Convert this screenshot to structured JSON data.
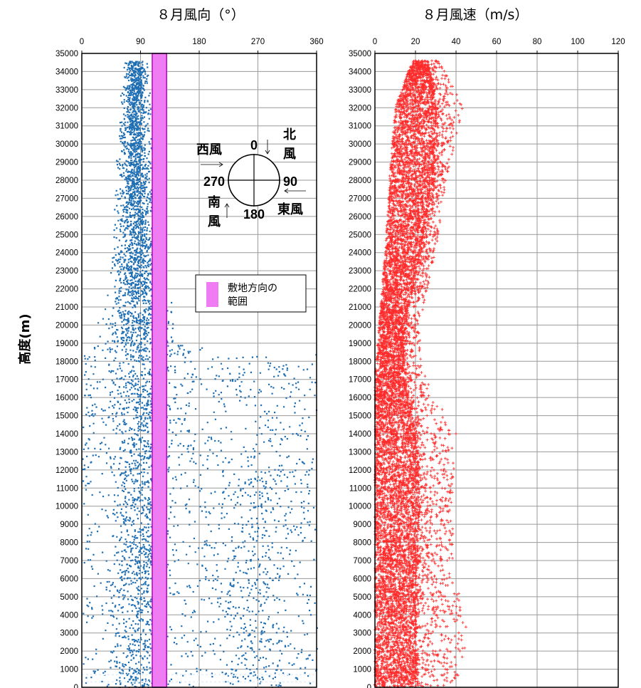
{
  "charts": {
    "left": {
      "title": "８月風向（°）",
      "xticks": [
        "0",
        "90",
        "180",
        "270",
        "360"
      ],
      "xlim": [
        0,
        360
      ],
      "ylim": [
        0,
        35000
      ],
      "ylabel": "高度(m)",
      "highlight_band": {
        "from_deg": 108,
        "to_deg": 130,
        "color": "#f07cf4",
        "edge": "#b800c0"
      },
      "marker_color": "#1f6fb4",
      "legend": {
        "label_line1": "敷地方向の",
        "label_line2": "範囲"
      },
      "compass": {
        "north_value": "0",
        "east_value": "90",
        "south_value": "180",
        "west_value": "270",
        "north_label_1": "北",
        "north_label_2": "風",
        "east_label": "東風",
        "west_label": "西風",
        "south_label_1": "南",
        "south_label_2": "風"
      }
    },
    "right": {
      "title": "８月風速（m/s）",
      "xticks": [
        "0",
        "20",
        "40",
        "60",
        "80",
        "100",
        "120"
      ],
      "xlim": [
        0,
        120
      ],
      "ylim": [
        0,
        35000
      ],
      "marker_color": "#ff2a2a"
    },
    "yticks": [
      "0",
      "1000",
      "2000",
      "3000",
      "4000",
      "5000",
      "6000",
      "7000",
      "8000",
      "9000",
      "10000",
      "11000",
      "12000",
      "13000",
      "14000",
      "15000",
      "16000",
      "17000",
      "18000",
      "19000",
      "20000",
      "21000",
      "22000",
      "23000",
      "24000",
      "25000",
      "26000",
      "27000",
      "28000",
      "29000",
      "30000",
      "31000",
      "32000",
      "33000",
      "34000",
      "35000"
    ]
  },
  "chart_data": [
    {
      "type": "scatter",
      "title": "８月風向（°）",
      "ylabel": "高度(m)",
      "xlim": [
        0,
        360
      ],
      "ylim": [
        0,
        35000
      ],
      "grid": true,
      "series": [
        {
          "name": "",
          "profile_by_altitude": [
            {
              "alt": 0,
              "dir_min": 0,
              "dir_max": 360,
              "dense_center": 90
            },
            {
              "alt": 5000,
              "dir_min": 0,
              "dir_max": 360,
              "dense_center": 260
            },
            {
              "alt": 10000,
              "dir_min": 0,
              "dir_max": 360,
              "dense_center": 90
            },
            {
              "alt": 15000,
              "dir_min": 0,
              "dir_max": 360,
              "dense_center": 90
            },
            {
              "alt": 18000,
              "dir_min": 0,
              "dir_max": 360,
              "dense_center": 90
            },
            {
              "alt": 19000,
              "dir_min": 20,
              "dir_max": 140,
              "dense_center": 88
            },
            {
              "alt": 22000,
              "dir_min": 45,
              "dir_max": 125,
              "dense_center": 85
            },
            {
              "alt": 26000,
              "dir_min": 55,
              "dir_max": 115,
              "dense_center": 82
            },
            {
              "alt": 30000,
              "dir_min": 60,
              "dir_max": 108,
              "dense_center": 80
            },
            {
              "alt": 34000,
              "dir_min": 65,
              "dir_max": 100,
              "dense_center": 82
            }
          ]
        }
      ],
      "highlight_range_deg": [
        108,
        130
      ]
    },
    {
      "type": "scatter",
      "title": "８月風速（m/s）",
      "xlim": [
        0,
        120
      ],
      "ylim": [
        0,
        35000
      ],
      "grid": true,
      "series": [
        {
          "name": "",
          "profile_by_altitude": [
            {
              "alt": 0,
              "speed_min": 0,
              "speed_dense_max": 20,
              "speed_max": 40
            },
            {
              "alt": 3000,
              "speed_min": 0,
              "speed_dense_max": 20,
              "speed_max": 46
            },
            {
              "alt": 6000,
              "speed_min": 0,
              "speed_dense_max": 20,
              "speed_max": 40
            },
            {
              "alt": 10000,
              "speed_min": 0,
              "speed_dense_max": 22,
              "speed_max": 38
            },
            {
              "alt": 14000,
              "speed_min": 0,
              "speed_dense_max": 20,
              "speed_max": 40
            },
            {
              "alt": 17000,
              "speed_min": 0,
              "speed_dense_max": 14,
              "speed_max": 25
            },
            {
              "alt": 20000,
              "speed_min": 2,
              "speed_dense_max": 14,
              "speed_max": 22
            },
            {
              "alt": 24000,
              "speed_min": 5,
              "speed_dense_max": 22,
              "speed_max": 30
            },
            {
              "alt": 28000,
              "speed_min": 7,
              "speed_dense_max": 28,
              "speed_max": 35
            },
            {
              "alt": 32000,
              "speed_min": 10,
              "speed_dense_max": 30,
              "speed_max": 44
            },
            {
              "alt": 34500,
              "speed_min": 18,
              "speed_dense_max": 26,
              "speed_max": 32
            }
          ]
        }
      ]
    }
  ]
}
